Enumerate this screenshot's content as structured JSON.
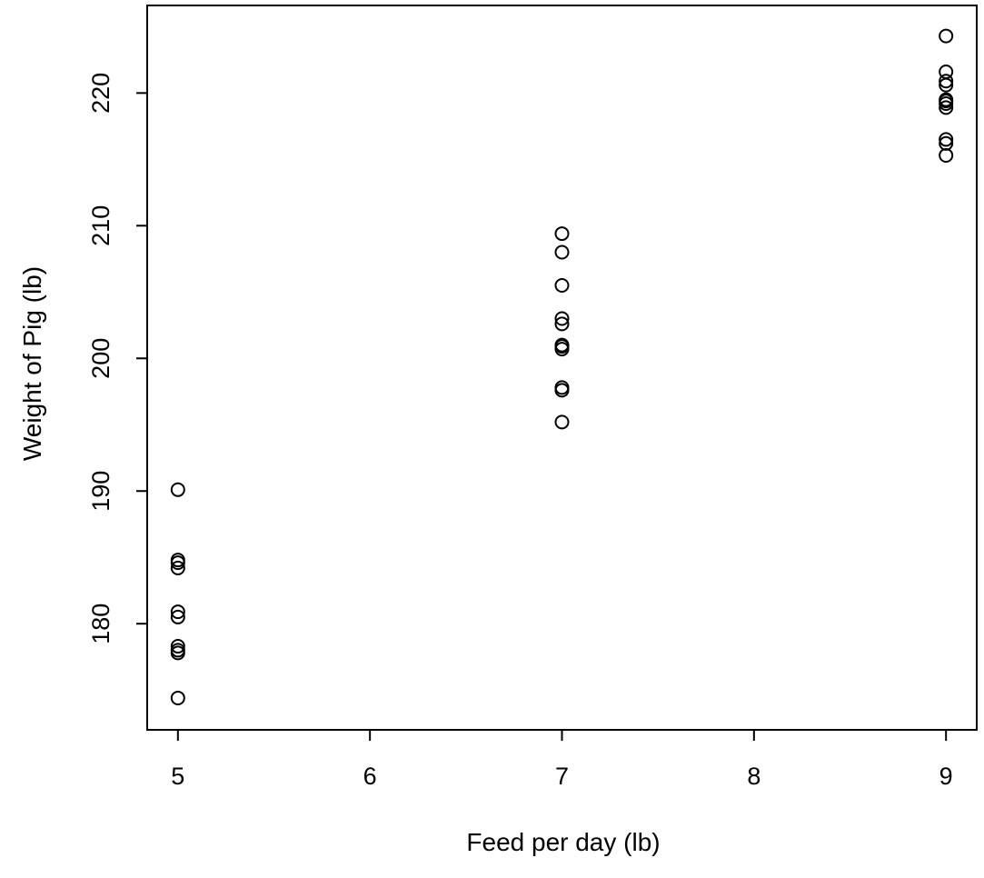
{
  "chart_data": {
    "type": "scatter",
    "title": "",
    "xlabel": "Feed per day (lb)",
    "ylabel": "Weight of Pig (lb)",
    "xlim": [
      4.84,
      9.16
    ],
    "ylim": [
      172.0,
      226.6
    ],
    "xticks": [
      5,
      6,
      7,
      8,
      9
    ],
    "yticks": [
      180,
      190,
      200,
      210,
      220
    ],
    "grid": false,
    "marker": "open-circle",
    "colors": {
      "points": "#000000",
      "axes": "#000000",
      "background": "#ffffff"
    },
    "series": [
      {
        "x": [
          5,
          5,
          5,
          5,
          5,
          5,
          5,
          5,
          5,
          5,
          7,
          7,
          7,
          7,
          7,
          7,
          7,
          7,
          7,
          7,
          7,
          9,
          9,
          9,
          9,
          9,
          9,
          9,
          9,
          9,
          9,
          9
        ],
        "y": [
          190.1,
          184.8,
          184.2,
          180.9,
          180.5,
          178.3,
          178.0,
          177.8,
          174.4,
          184.6,
          209.4,
          208.0,
          205.5,
          203.0,
          202.6,
          201.0,
          200.7,
          197.8,
          197.6,
          195.2,
          200.9,
          224.3,
          221.6,
          220.9,
          220.6,
          219.5,
          219.2,
          218.9,
          216.5,
          216.2,
          215.3,
          219.4
        ]
      }
    ]
  }
}
